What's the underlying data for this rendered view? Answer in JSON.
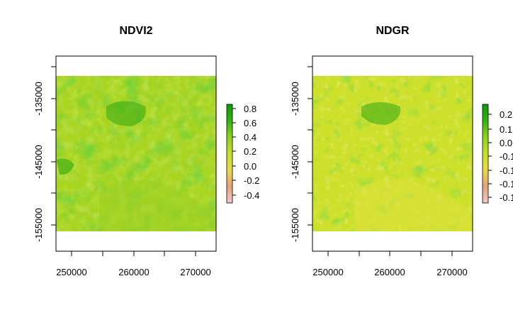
{
  "maps": [
    {
      "title": "NDVI2",
      "x_ticks": [
        "250000",
        "260000",
        "270000"
      ],
      "y_ticks": [
        "-135000",
        "-145000",
        "-155000"
      ],
      "legend_ticks": [
        "0.8",
        "0.6",
        "0.4",
        "0.2",
        "0.0",
        "-0.2",
        "-0.4"
      ],
      "legend_colors": [
        "#f2c8c8",
        "#e6a278",
        "#e8d84a",
        "#c6e02a",
        "#8ed21f",
        "#34b20e",
        "#0e9a0a"
      ]
    },
    {
      "title": "NDGR",
      "x_ticks": [
        "250000",
        "260000",
        "270000"
      ],
      "y_ticks": [
        "-135000",
        "-145000",
        "-155000"
      ],
      "legend_ticks": [
        "0.2",
        "0.1",
        "0.0",
        "-0.1",
        "-0.1",
        "-0.1",
        "-0.1"
      ],
      "legend_colors": [
        "#f2c8c8",
        "#e6a278",
        "#e8d84a",
        "#c6e02a",
        "#8ed21f",
        "#34b20e",
        "#0e9a0a"
      ]
    }
  ]
}
